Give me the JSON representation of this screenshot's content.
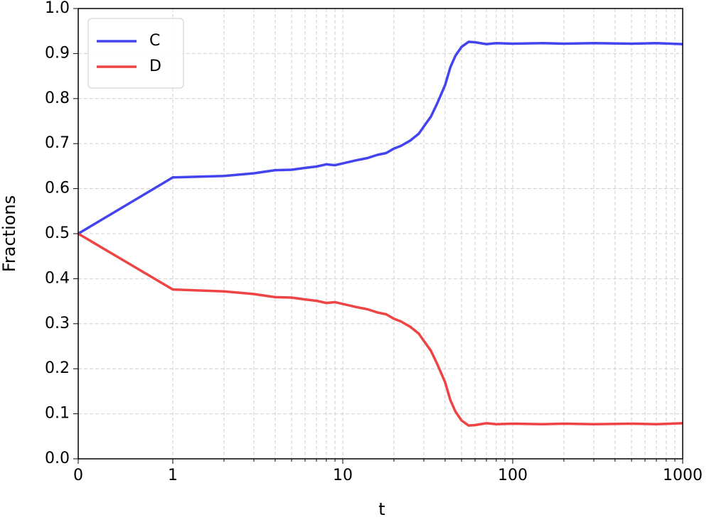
{
  "chart_data": {
    "type": "line",
    "xlabel": "t",
    "ylabel": "Fractions",
    "xscale": "symlog",
    "linthresh": 1,
    "x": [
      0,
      1,
      2,
      3,
      4,
      5,
      6,
      7,
      8,
      9,
      10,
      12,
      14,
      16,
      18,
      20,
      22,
      25,
      28,
      30,
      33,
      36,
      40,
      43,
      46,
      50,
      55,
      60,
      70,
      80,
      100,
      150,
      200,
      300,
      500,
      700,
      1000
    ],
    "series": [
      {
        "name": "C",
        "color": "#4444ee",
        "values": [
          0.5,
          0.625,
          0.628,
          0.634,
          0.641,
          0.642,
          0.646,
          0.649,
          0.654,
          0.652,
          0.656,
          0.663,
          0.668,
          0.675,
          0.679,
          0.689,
          0.695,
          0.707,
          0.722,
          0.738,
          0.76,
          0.79,
          0.83,
          0.87,
          0.895,
          0.915,
          0.926,
          0.925,
          0.921,
          0.923,
          0.922,
          0.923,
          0.922,
          0.923,
          0.922,
          0.923,
          0.921
        ]
      },
      {
        "name": "D",
        "color": "#ee4444",
        "values": [
          0.5,
          0.376,
          0.372,
          0.366,
          0.359,
          0.358,
          0.354,
          0.351,
          0.346,
          0.348,
          0.344,
          0.337,
          0.332,
          0.325,
          0.321,
          0.311,
          0.305,
          0.293,
          0.278,
          0.262,
          0.24,
          0.21,
          0.17,
          0.13,
          0.105,
          0.085,
          0.074,
          0.075,
          0.079,
          0.077,
          0.078,
          0.077,
          0.078,
          0.077,
          0.078,
          0.077,
          0.079
        ]
      }
    ],
    "xlim": [
      0,
      1000
    ],
    "xticks": [
      0,
      1,
      10,
      100,
      1000
    ],
    "xminorticks": [
      2,
      3,
      4,
      5,
      6,
      7,
      8,
      9,
      20,
      30,
      40,
      50,
      60,
      70,
      80,
      90,
      200,
      300,
      400,
      500,
      600,
      700,
      800,
      900
    ],
    "ylim": [
      0,
      1
    ],
    "yticks": [
      {
        "value": 0,
        "label": "0.0"
      },
      0.1,
      0.2,
      0.3,
      0.4,
      0.5,
      0.6,
      0.7,
      0.8,
      0.9,
      {
        "value": 1,
        "label": "1.0"
      }
    ],
    "grid": true,
    "legend": "upper left"
  }
}
